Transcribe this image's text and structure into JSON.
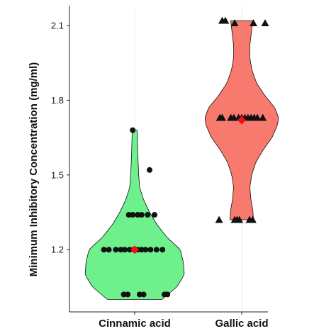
{
  "chart_data": {
    "type": "violin",
    "ylabel": "Minimum Inhibitory Concentration (mg/ml)",
    "xlabel": "",
    "ylim": [
      0.95,
      2.18
    ],
    "yticks": [
      1.2,
      1.5,
      1.8,
      2.1
    ],
    "ytick_labels": [
      "1.2",
      "1.5",
      "1.8",
      "2.1"
    ],
    "grid": true,
    "legend": "none",
    "categories": [
      "Cinnamic acid",
      "Gallic acid"
    ],
    "groups": [
      {
        "category": "Cinnamic acid",
        "fill_color": "#6ef08c",
        "marker": "circle",
        "violin_range": [
          1.0,
          1.68
        ],
        "violin_width_profile": [
          [
            1.0,
            0.55
          ],
          [
            1.05,
            0.85
          ],
          [
            1.1,
            1.0
          ],
          [
            1.15,
            0.98
          ],
          [
            1.2,
            0.92
          ],
          [
            1.25,
            0.65
          ],
          [
            1.3,
            0.45
          ],
          [
            1.35,
            0.3
          ],
          [
            1.4,
            0.18
          ],
          [
            1.45,
            0.1
          ],
          [
            1.5,
            0.08
          ],
          [
            1.55,
            0.07
          ],
          [
            1.6,
            0.06
          ],
          [
            1.68,
            0.05
          ]
        ],
        "mean": 1.2,
        "points": [
          {
            "y": 1.68,
            "jitter": -0.04
          },
          {
            "y": 1.52,
            "jitter": 0.3
          },
          {
            "y": 1.34,
            "jitter": -0.12
          },
          {
            "y": 1.34,
            "jitter": -0.04
          },
          {
            "y": 1.34,
            "jitter": 0.06
          },
          {
            "y": 1.34,
            "jitter": 0.14
          },
          {
            "y": 1.34,
            "jitter": 0.26
          },
          {
            "y": 1.34,
            "jitter": 0.4
          },
          {
            "y": 1.2,
            "jitter": -0.62
          },
          {
            "y": 1.2,
            "jitter": -0.52
          },
          {
            "y": 1.2,
            "jitter": -0.38
          },
          {
            "y": 1.2,
            "jitter": -0.28
          },
          {
            "y": 1.2,
            "jitter": -0.2
          },
          {
            "y": 1.2,
            "jitter": -0.1
          },
          {
            "y": 1.2,
            "jitter": -0.02
          },
          {
            "y": 1.2,
            "jitter": 0.06
          },
          {
            "y": 1.2,
            "jitter": 0.14
          },
          {
            "y": 1.2,
            "jitter": 0.22
          },
          {
            "y": 1.2,
            "jitter": 0.32
          },
          {
            "y": 1.2,
            "jitter": 0.44
          },
          {
            "y": 1.2,
            "jitter": 0.56
          },
          {
            "y": 1.02,
            "jitter": -0.22
          },
          {
            "y": 1.02,
            "jitter": -0.14
          },
          {
            "y": 1.02,
            "jitter": 0.1
          },
          {
            "y": 1.02,
            "jitter": 0.18
          },
          {
            "y": 1.02,
            "jitter": 0.6
          },
          {
            "y": 1.02,
            "jitter": 0.66
          }
        ]
      },
      {
        "category": "Gallic acid",
        "fill_color": "#f87a6e",
        "marker": "triangle",
        "violin_range": [
          1.32,
          2.12
        ],
        "violin_width_profile": [
          [
            1.32,
            0.32
          ],
          [
            1.36,
            0.3
          ],
          [
            1.4,
            0.25
          ],
          [
            1.45,
            0.22
          ],
          [
            1.5,
            0.27
          ],
          [
            1.55,
            0.38
          ],
          [
            1.6,
            0.58
          ],
          [
            1.65,
            0.82
          ],
          [
            1.7,
            0.97
          ],
          [
            1.73,
            1.0
          ],
          [
            1.77,
            0.9
          ],
          [
            1.82,
            0.62
          ],
          [
            1.87,
            0.4
          ],
          [
            1.92,
            0.28
          ],
          [
            1.97,
            0.22
          ],
          [
            2.02,
            0.22
          ],
          [
            2.07,
            0.26
          ],
          [
            2.12,
            0.3
          ]
        ],
        "mean": 1.72,
        "points": [
          {
            "y": 2.12,
            "jitter": -0.5
          },
          {
            "y": 2.12,
            "jitter": -0.42
          },
          {
            "y": 2.11,
            "jitter": -0.18
          },
          {
            "y": 2.11,
            "jitter": 0.3
          },
          {
            "y": 2.11,
            "jitter": 0.6
          },
          {
            "y": 1.73,
            "jitter": -0.56
          },
          {
            "y": 1.73,
            "jitter": -0.5
          },
          {
            "y": 1.73,
            "jitter": -0.28
          },
          {
            "y": 1.73,
            "jitter": -0.2
          },
          {
            "y": 1.73,
            "jitter": -0.08
          },
          {
            "y": 1.73,
            "jitter": 0.0
          },
          {
            "y": 1.73,
            "jitter": 0.08
          },
          {
            "y": 1.73,
            "jitter": 0.16
          },
          {
            "y": 1.73,
            "jitter": 0.24
          },
          {
            "y": 1.73,
            "jitter": 0.32
          },
          {
            "y": 1.73,
            "jitter": 0.4
          },
          {
            "y": 1.73,
            "jitter": 0.54
          },
          {
            "y": 1.32,
            "jitter": -0.58
          },
          {
            "y": 1.32,
            "jitter": -0.18
          },
          {
            "y": 1.32,
            "jitter": -0.12
          },
          {
            "y": 1.32,
            "jitter": -0.06
          },
          {
            "y": 1.32,
            "jitter": 0.2
          },
          {
            "y": 1.32,
            "jitter": 0.28
          }
        ]
      }
    ],
    "colors": {
      "mean_marker": "#ee1111",
      "points": "#111111",
      "grid": "#ececec",
      "axis": "#222222",
      "violin_outline": "#111111"
    }
  }
}
